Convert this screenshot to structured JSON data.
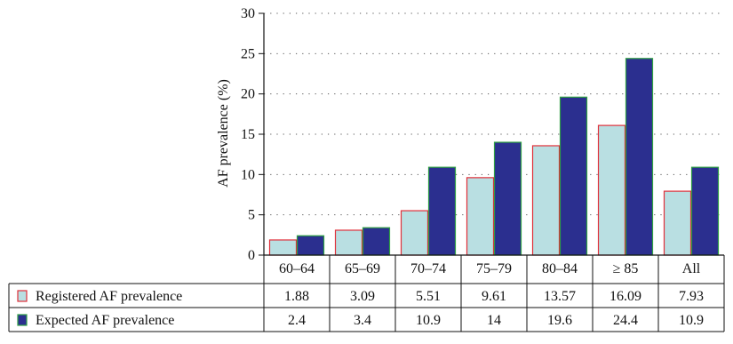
{
  "chart_data": {
    "type": "bar",
    "ylabel": "AF prevalence (%)",
    "xlabel": "",
    "ylim": [
      0,
      30
    ],
    "yticks": [
      0,
      5,
      10,
      15,
      20,
      25,
      30
    ],
    "grid": "horizontal dotted",
    "legend": "table below chart",
    "categories": [
      "60–64",
      "65–69",
      "70–74",
      "75–79",
      "80–84",
      "≥ 85",
      "All"
    ],
    "series": [
      {
        "name": "Registered AF prevalence",
        "values": [
          1.88,
          3.09,
          5.51,
          9.61,
          13.57,
          16.09,
          7.93
        ],
        "value_labels": [
          "1.88",
          "3.09",
          "5.51",
          "9.61",
          "13.57",
          "16.09",
          "7.93"
        ],
        "fill": "#b9dfe2",
        "stroke": "#e0303a"
      },
      {
        "name": "Expected AF prevalence",
        "values": [
          2.4,
          3.4,
          10.9,
          14,
          19.6,
          24.4,
          10.9
        ],
        "value_labels": [
          "2.4",
          "3.4",
          "10.9",
          "14",
          "19.6",
          "24.4",
          "10.9"
        ],
        "fill": "#2b2f8f",
        "stroke": "#2e9e44"
      }
    ]
  }
}
